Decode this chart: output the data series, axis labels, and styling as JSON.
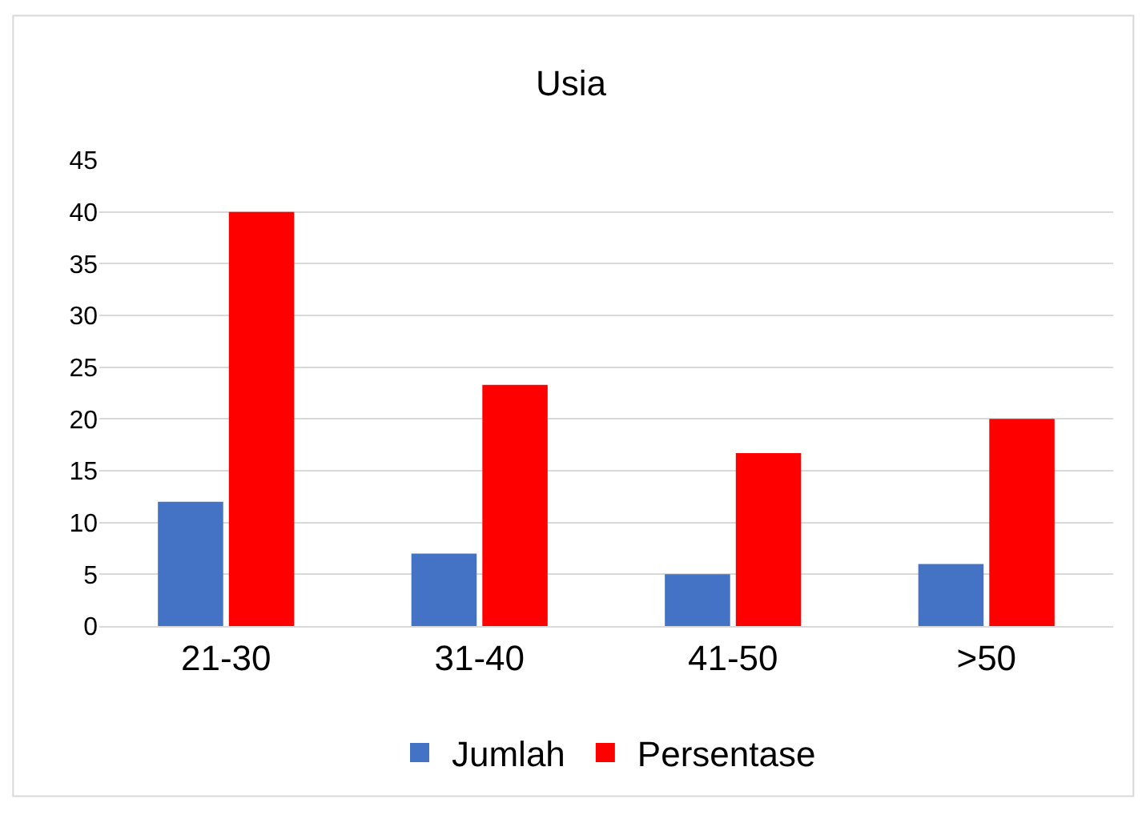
{
  "chart_data": {
    "type": "bar",
    "title": "Usia",
    "categories": [
      "21-30",
      "31-40",
      "41-50",
      ">50"
    ],
    "series": [
      {
        "name": "Jumlah",
        "color": "#4472c4",
        "values": [
          12,
          7,
          5,
          6
        ]
      },
      {
        "name": "Persentase",
        "color": "#ff0000",
        "values": [
          40,
          23.3,
          16.7,
          20
        ]
      }
    ],
    "ylim": [
      0,
      45
    ],
    "yticks": [
      0,
      5,
      10,
      15,
      20,
      25,
      30,
      35,
      40,
      45
    ],
    "grid": "y",
    "legend": "bottom"
  }
}
